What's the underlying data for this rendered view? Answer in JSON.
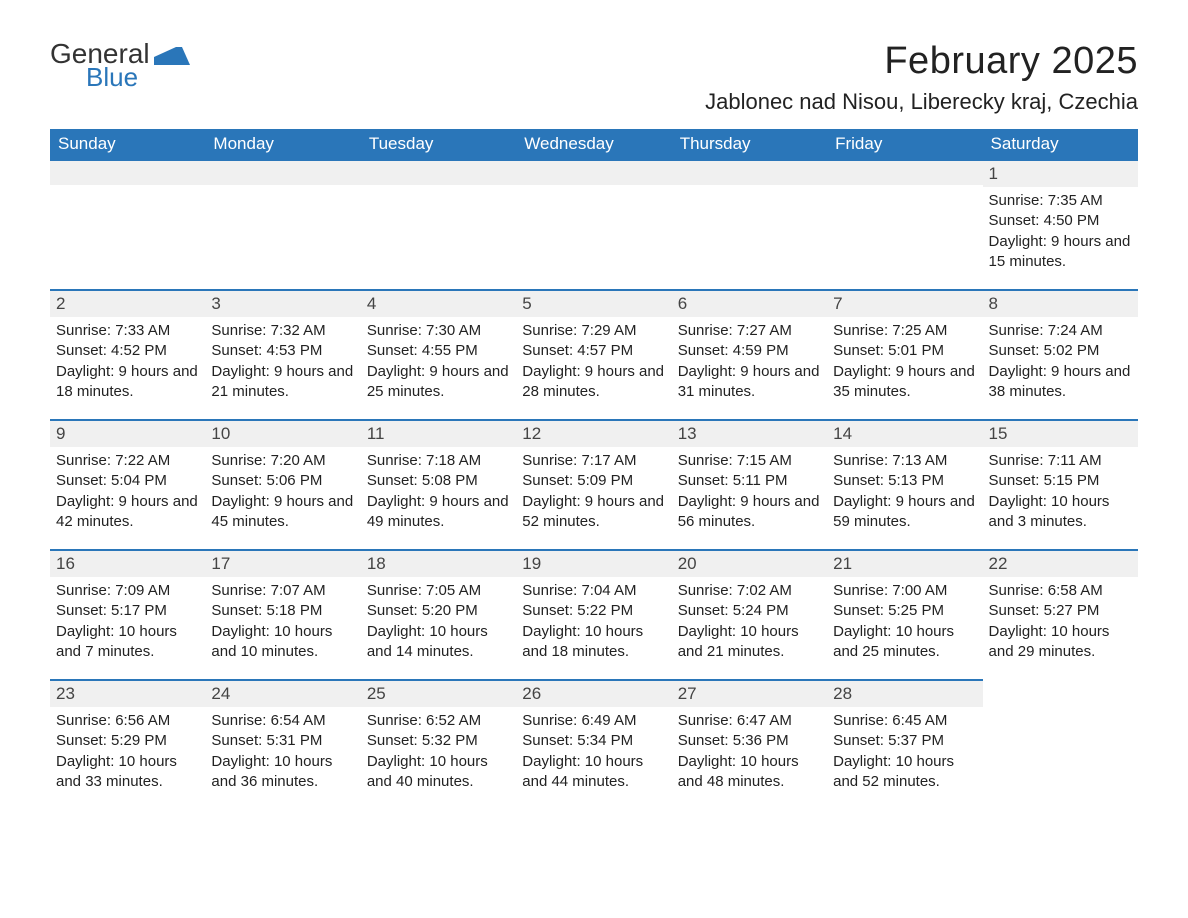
{
  "logo": {
    "general": "General",
    "blue": "Blue"
  },
  "title": "February 2025",
  "location": "Jablonec nad Nisou, Liberecky kraj, Czechia",
  "colors": {
    "header_bg": "#2a76b9",
    "header_text": "#ffffff",
    "daynum_bg": "#f0f0f0",
    "row_border": "#2a76b9",
    "body_text": "#222222",
    "logo_blue": "#2a76b9",
    "page_bg": "#ffffff"
  },
  "typography": {
    "title_fontsize": 38,
    "location_fontsize": 22,
    "weekday_fontsize": 17,
    "daynum_fontsize": 17,
    "detail_fontsize": 15
  },
  "weekdays": [
    "Sunday",
    "Monday",
    "Tuesday",
    "Wednesday",
    "Thursday",
    "Friday",
    "Saturday"
  ],
  "labels": {
    "sunrise": "Sunrise:",
    "sunset": "Sunset:",
    "daylight": "Daylight:"
  },
  "weeks": [
    [
      null,
      null,
      null,
      null,
      null,
      null,
      {
        "num": "1",
        "sunrise": "7:35 AM",
        "sunset": "4:50 PM",
        "daylight": "9 hours and 15 minutes."
      }
    ],
    [
      {
        "num": "2",
        "sunrise": "7:33 AM",
        "sunset": "4:52 PM",
        "daylight": "9 hours and 18 minutes."
      },
      {
        "num": "3",
        "sunrise": "7:32 AM",
        "sunset": "4:53 PM",
        "daylight": "9 hours and 21 minutes."
      },
      {
        "num": "4",
        "sunrise": "7:30 AM",
        "sunset": "4:55 PM",
        "daylight": "9 hours and 25 minutes."
      },
      {
        "num": "5",
        "sunrise": "7:29 AM",
        "sunset": "4:57 PM",
        "daylight": "9 hours and 28 minutes."
      },
      {
        "num": "6",
        "sunrise": "7:27 AM",
        "sunset": "4:59 PM",
        "daylight": "9 hours and 31 minutes."
      },
      {
        "num": "7",
        "sunrise": "7:25 AM",
        "sunset": "5:01 PM",
        "daylight": "9 hours and 35 minutes."
      },
      {
        "num": "8",
        "sunrise": "7:24 AM",
        "sunset": "5:02 PM",
        "daylight": "9 hours and 38 minutes."
      }
    ],
    [
      {
        "num": "9",
        "sunrise": "7:22 AM",
        "sunset": "5:04 PM",
        "daylight": "9 hours and 42 minutes."
      },
      {
        "num": "10",
        "sunrise": "7:20 AM",
        "sunset": "5:06 PM",
        "daylight": "9 hours and 45 minutes."
      },
      {
        "num": "11",
        "sunrise": "7:18 AM",
        "sunset": "5:08 PM",
        "daylight": "9 hours and 49 minutes."
      },
      {
        "num": "12",
        "sunrise": "7:17 AM",
        "sunset": "5:09 PM",
        "daylight": "9 hours and 52 minutes."
      },
      {
        "num": "13",
        "sunrise": "7:15 AM",
        "sunset": "5:11 PM",
        "daylight": "9 hours and 56 minutes."
      },
      {
        "num": "14",
        "sunrise": "7:13 AM",
        "sunset": "5:13 PM",
        "daylight": "9 hours and 59 minutes."
      },
      {
        "num": "15",
        "sunrise": "7:11 AM",
        "sunset": "5:15 PM",
        "daylight": "10 hours and 3 minutes."
      }
    ],
    [
      {
        "num": "16",
        "sunrise": "7:09 AM",
        "sunset": "5:17 PM",
        "daylight": "10 hours and 7 minutes."
      },
      {
        "num": "17",
        "sunrise": "7:07 AM",
        "sunset": "5:18 PM",
        "daylight": "10 hours and 10 minutes."
      },
      {
        "num": "18",
        "sunrise": "7:05 AM",
        "sunset": "5:20 PM",
        "daylight": "10 hours and 14 minutes."
      },
      {
        "num": "19",
        "sunrise": "7:04 AM",
        "sunset": "5:22 PM",
        "daylight": "10 hours and 18 minutes."
      },
      {
        "num": "20",
        "sunrise": "7:02 AM",
        "sunset": "5:24 PM",
        "daylight": "10 hours and 21 minutes."
      },
      {
        "num": "21",
        "sunrise": "7:00 AM",
        "sunset": "5:25 PM",
        "daylight": "10 hours and 25 minutes."
      },
      {
        "num": "22",
        "sunrise": "6:58 AM",
        "sunset": "5:27 PM",
        "daylight": "10 hours and 29 minutes."
      }
    ],
    [
      {
        "num": "23",
        "sunrise": "6:56 AM",
        "sunset": "5:29 PM",
        "daylight": "10 hours and 33 minutes."
      },
      {
        "num": "24",
        "sunrise": "6:54 AM",
        "sunset": "5:31 PM",
        "daylight": "10 hours and 36 minutes."
      },
      {
        "num": "25",
        "sunrise": "6:52 AM",
        "sunset": "5:32 PM",
        "daylight": "10 hours and 40 minutes."
      },
      {
        "num": "26",
        "sunrise": "6:49 AM",
        "sunset": "5:34 PM",
        "daylight": "10 hours and 44 minutes."
      },
      {
        "num": "27",
        "sunrise": "6:47 AM",
        "sunset": "5:36 PM",
        "daylight": "10 hours and 48 minutes."
      },
      {
        "num": "28",
        "sunrise": "6:45 AM",
        "sunset": "5:37 PM",
        "daylight": "10 hours and 52 minutes."
      },
      null
    ]
  ]
}
